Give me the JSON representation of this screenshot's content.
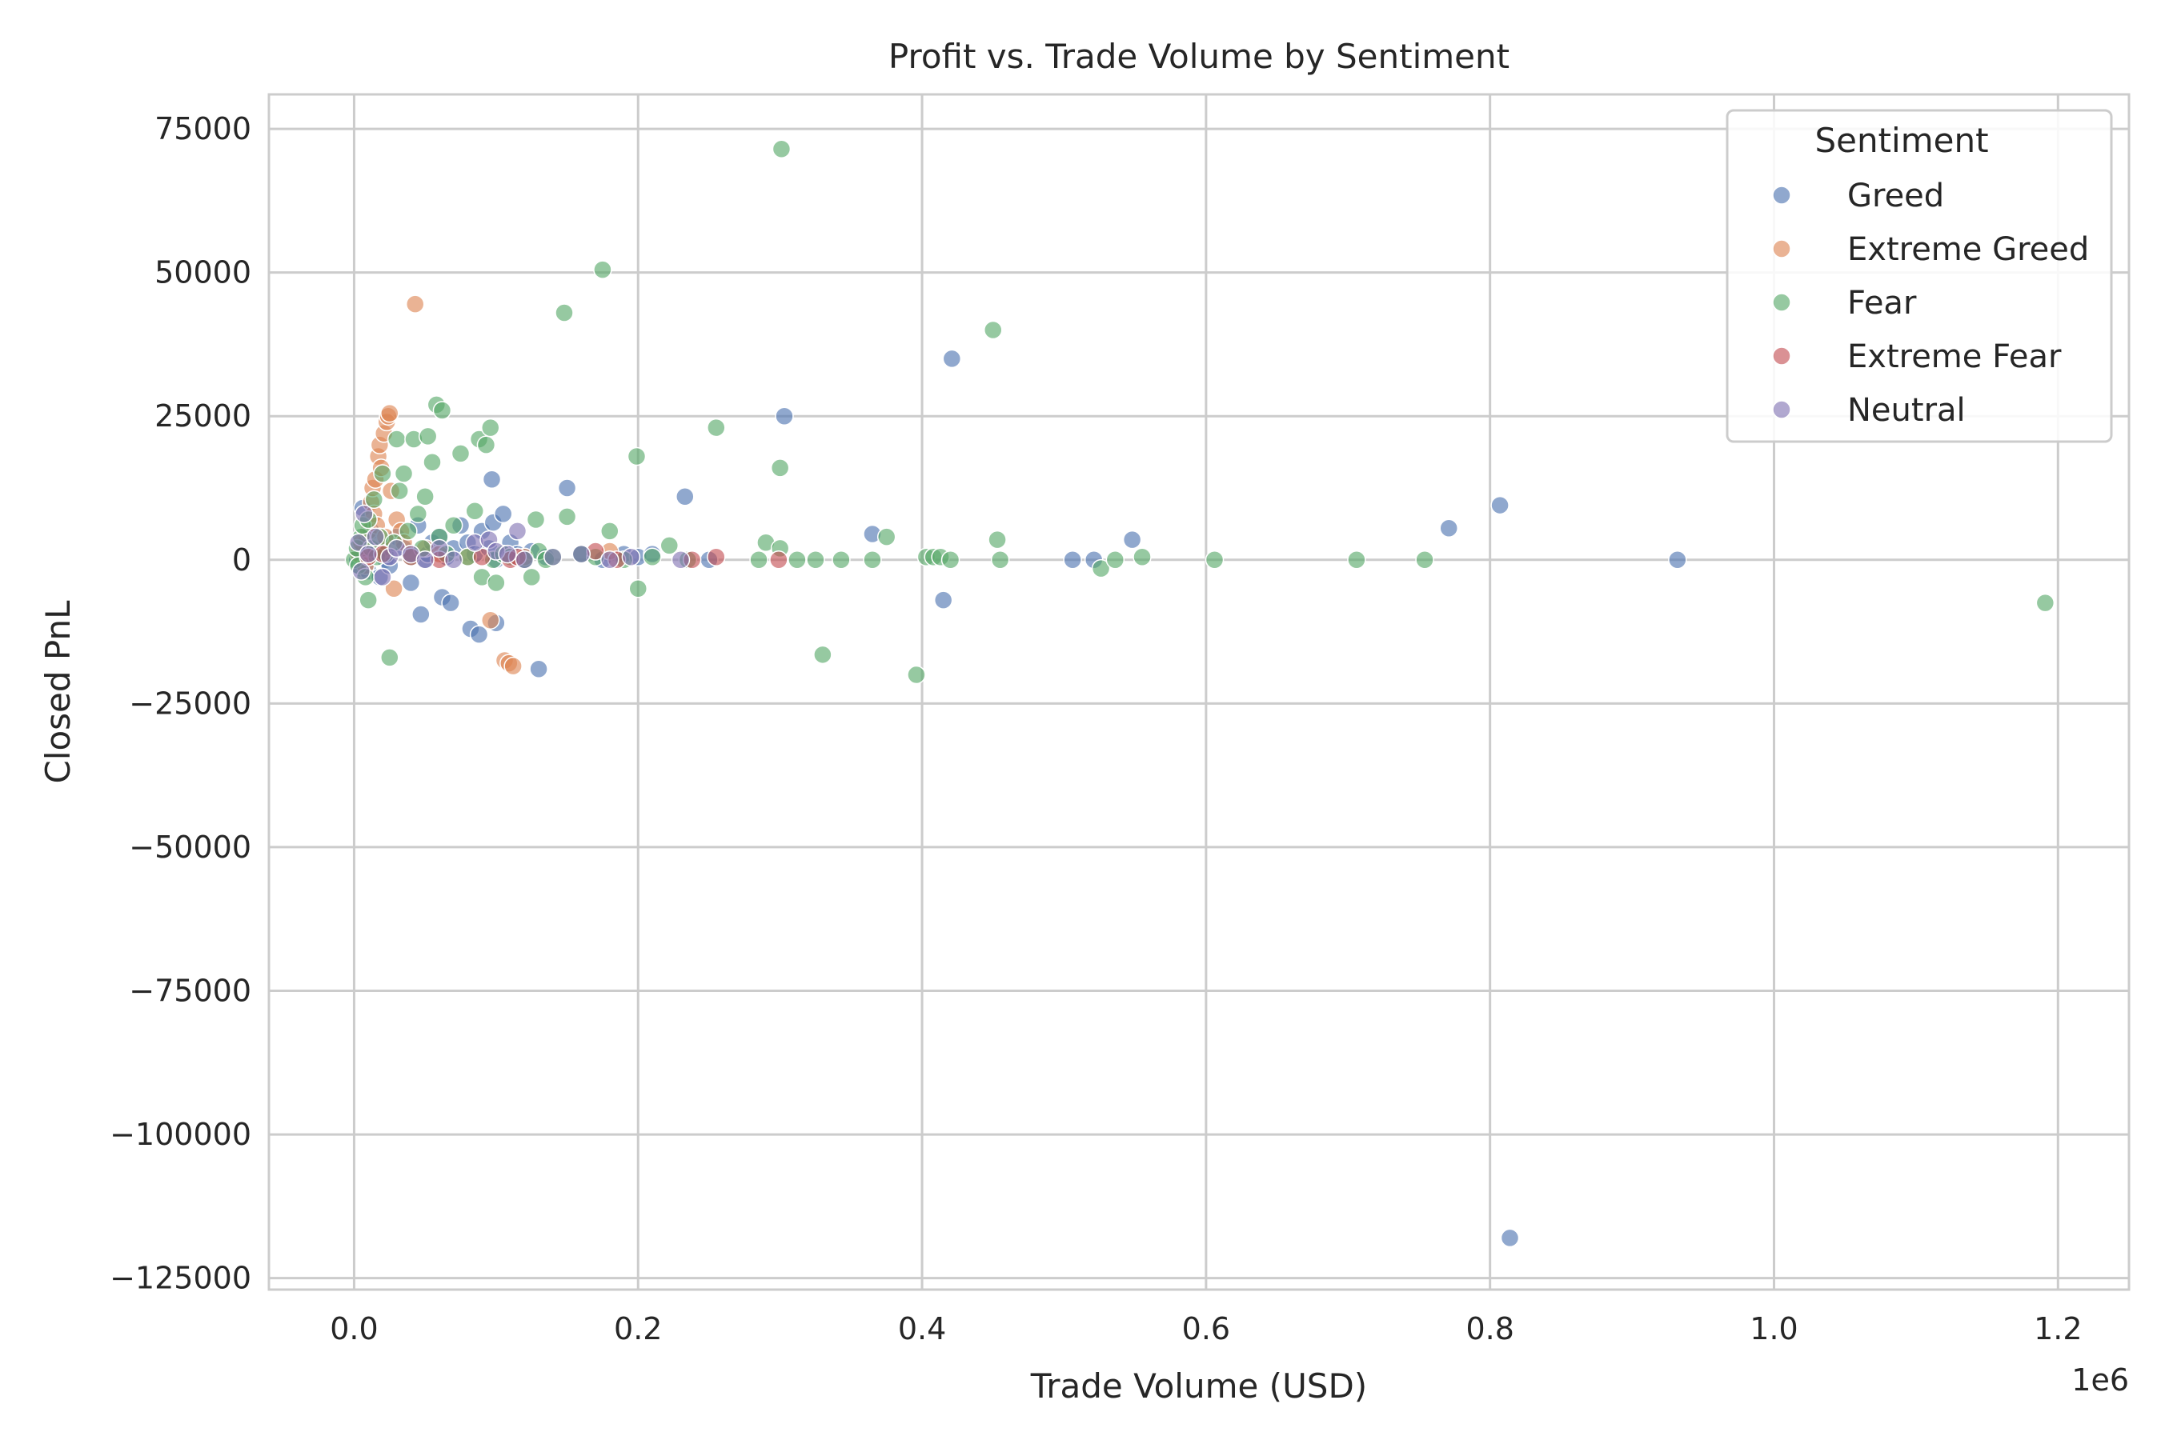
{
  "chart_data": {
    "type": "scatter",
    "title": "Profit vs. Trade Volume by Sentiment",
    "xlabel": "Trade Volume (USD)",
    "ylabel": "Closed PnL",
    "x_offset_label": "1e6",
    "xlim": [
      -60000,
      1250000
    ],
    "ylim": [
      -127000,
      81000
    ],
    "x_ticks": [
      0,
      200000,
      400000,
      600000,
      800000,
      1000000,
      1200000
    ],
    "x_tick_labels": [
      "0.0",
      "0.2",
      "0.4",
      "0.6",
      "0.8",
      "1.0",
      "1.2"
    ],
    "y_ticks": [
      -125000,
      -100000,
      -75000,
      -50000,
      -25000,
      0,
      25000,
      50000,
      75000
    ],
    "y_tick_labels": [
      "−125000",
      "−100000",
      "−75000",
      "−50000",
      "−25000",
      "0",
      "25000",
      "50000",
      "75000"
    ],
    "grid": true,
    "legend": {
      "title": "Sentiment",
      "placement": "top-right"
    },
    "series": [
      {
        "name": "Greed",
        "color": "#4c72b0",
        "points": [
          [
            2000,
            0
          ],
          [
            4000,
            1000
          ],
          [
            5000,
            -1500
          ],
          [
            6000,
            9000
          ],
          [
            8000,
            3000
          ],
          [
            10000,
            -2000
          ],
          [
            12000,
            5000
          ],
          [
            15000,
            1000
          ],
          [
            18000,
            -3000
          ],
          [
            20000,
            2000
          ],
          [
            22000,
            0
          ],
          [
            25000,
            -1000
          ],
          [
            30000,
            4000
          ],
          [
            35000,
            2000
          ],
          [
            40000,
            -4000
          ],
          [
            45000,
            6000
          ],
          [
            47000,
            -9500
          ],
          [
            50000,
            0
          ],
          [
            52000,
            1000
          ],
          [
            55000,
            3000
          ],
          [
            60000,
            4000
          ],
          [
            62000,
            -6500
          ],
          [
            65000,
            500
          ],
          [
            68000,
            -7500
          ],
          [
            70000,
            2000
          ],
          [
            75000,
            6000
          ],
          [
            80000,
            3000
          ],
          [
            82000,
            -12000
          ],
          [
            85000,
            1000
          ],
          [
            88000,
            -13000
          ],
          [
            90000,
            5000
          ],
          [
            95000,
            2000
          ],
          [
            97000,
            14000
          ],
          [
            98000,
            6500
          ],
          [
            100000,
            -11000
          ],
          [
            100000,
            0
          ],
          [
            105000,
            8000
          ],
          [
            110000,
            3000
          ],
          [
            115000,
            1000
          ],
          [
            120000,
            0
          ],
          [
            125000,
            1500
          ],
          [
            130000,
            -19000
          ],
          [
            135000,
            500
          ],
          [
            150000,
            12500
          ],
          [
            160000,
            1000
          ],
          [
            175000,
            0
          ],
          [
            190000,
            1000
          ],
          [
            200000,
            500
          ],
          [
            210000,
            1000
          ],
          [
            233000,
            11000
          ],
          [
            250000,
            0
          ],
          [
            303000,
            25000
          ],
          [
            365000,
            4500
          ],
          [
            415000,
            -7000
          ],
          [
            421000,
            35000
          ],
          [
            506000,
            0
          ],
          [
            521000,
            0
          ],
          [
            548000,
            3500
          ],
          [
            771000,
            5500
          ],
          [
            807000,
            9500
          ],
          [
            814000,
            -118000
          ],
          [
            932000,
            0
          ]
        ]
      },
      {
        "name": "Extreme Greed",
        "color": "#dd8452",
        "points": [
          [
            3000,
            1000
          ],
          [
            5000,
            3000
          ],
          [
            8000,
            -1000
          ],
          [
            10000,
            5000
          ],
          [
            12000,
            10000
          ],
          [
            13000,
            12500
          ],
          [
            14000,
            8000
          ],
          [
            15000,
            14000
          ],
          [
            16000,
            6000
          ],
          [
            17000,
            18000
          ],
          [
            18000,
            20000
          ],
          [
            19000,
            16000
          ],
          [
            20000,
            2000
          ],
          [
            21000,
            22000
          ],
          [
            22000,
            4000
          ],
          [
            23000,
            24000
          ],
          [
            24000,
            25000
          ],
          [
            25000,
            25500
          ],
          [
            26000,
            12000
          ],
          [
            28000,
            -5000
          ],
          [
            30000,
            7000
          ],
          [
            33000,
            5000
          ],
          [
            35000,
            3000
          ],
          [
            40000,
            1000
          ],
          [
            43000,
            44500
          ],
          [
            50000,
            2000
          ],
          [
            60000,
            1000
          ],
          [
            80000,
            500
          ],
          [
            96000,
            -10500
          ],
          [
            106000,
            -17500
          ],
          [
            109000,
            -18000
          ],
          [
            112000,
            -18500
          ],
          [
            120000,
            500
          ],
          [
            180000,
            1500
          ]
        ]
      },
      {
        "name": "Fear",
        "color": "#55a868",
        "points": [
          [
            0,
            0
          ],
          [
            2000,
            2000
          ],
          [
            3000,
            -1000
          ],
          [
            5000,
            4000
          ],
          [
            6000,
            6000
          ],
          [
            8000,
            -3000
          ],
          [
            10000,
            7000
          ],
          [
            10000,
            -7000
          ],
          [
            12000,
            2000
          ],
          [
            14000,
            10500
          ],
          [
            16000,
            500
          ],
          [
            18000,
            4000
          ],
          [
            20000,
            15000
          ],
          [
            22000,
            1000
          ],
          [
            25000,
            -17000
          ],
          [
            28000,
            3000
          ],
          [
            30000,
            21000
          ],
          [
            32000,
            12000
          ],
          [
            35000,
            15000
          ],
          [
            38000,
            5000
          ],
          [
            40000,
            500
          ],
          [
            42000,
            21000
          ],
          [
            45000,
            8000
          ],
          [
            48000,
            2000
          ],
          [
            50000,
            11000
          ],
          [
            52000,
            21500
          ],
          [
            55000,
            17000
          ],
          [
            58000,
            27000
          ],
          [
            60000,
            4000
          ],
          [
            62000,
            26000
          ],
          [
            65000,
            1000
          ],
          [
            70000,
            6000
          ],
          [
            75000,
            18500
          ],
          [
            80000,
            500
          ],
          [
            85000,
            8500
          ],
          [
            88000,
            21000
          ],
          [
            90000,
            -3000
          ],
          [
            93000,
            20000
          ],
          [
            96000,
            23000
          ],
          [
            98000,
            0
          ],
          [
            100000,
            -4000
          ],
          [
            105000,
            1000
          ],
          [
            110000,
            500
          ],
          [
            120000,
            0
          ],
          [
            125000,
            -3000
          ],
          [
            128000,
            7000
          ],
          [
            130000,
            1500
          ],
          [
            135000,
            0
          ],
          [
            140000,
            500
          ],
          [
            148000,
            43000
          ],
          [
            150000,
            7500
          ],
          [
            160000,
            1000
          ],
          [
            170000,
            500
          ],
          [
            175000,
            50500
          ],
          [
            180000,
            5000
          ],
          [
            190000,
            0
          ],
          [
            199000,
            18000
          ],
          [
            200000,
            -5000
          ],
          [
            210000,
            500
          ],
          [
            222000,
            2500
          ],
          [
            235000,
            0
          ],
          [
            255000,
            23000
          ],
          [
            285000,
            0
          ],
          [
            290000,
            3000
          ],
          [
            300000,
            16000
          ],
          [
            300000,
            2000
          ],
          [
            301000,
            71500
          ],
          [
            312000,
            0
          ],
          [
            325000,
            0
          ],
          [
            330000,
            -16500
          ],
          [
            343000,
            0
          ],
          [
            365000,
            0
          ],
          [
            375000,
            4000
          ],
          [
            396000,
            -20000
          ],
          [
            403000,
            500
          ],
          [
            408000,
            500
          ],
          [
            413000,
            500
          ],
          [
            420000,
            0
          ],
          [
            450000,
            40000
          ],
          [
            453000,
            3500
          ],
          [
            455000,
            0
          ],
          [
            526000,
            -1500
          ],
          [
            536000,
            0
          ],
          [
            555000,
            500
          ],
          [
            606000,
            0
          ],
          [
            706000,
            0
          ],
          [
            754000,
            0
          ],
          [
            1191000,
            -7500
          ]
        ]
      },
      {
        "name": "Extreme Fear",
        "color": "#c44e52",
        "points": [
          [
            10000,
            500
          ],
          [
            20000,
            1000
          ],
          [
            40000,
            500
          ],
          [
            60000,
            0
          ],
          [
            90000,
            500
          ],
          [
            110000,
            0
          ],
          [
            115000,
            500
          ],
          [
            170000,
            1500
          ],
          [
            185000,
            0
          ],
          [
            238000,
            0
          ],
          [
            255000,
            500
          ],
          [
            299000,
            0
          ]
        ]
      },
      {
        "name": "Neutral",
        "color": "#8172b3",
        "points": [
          [
            3000,
            3000
          ],
          [
            5000,
            -2000
          ],
          [
            7000,
            8000
          ],
          [
            10000,
            1000
          ],
          [
            15000,
            4000
          ],
          [
            20000,
            -3000
          ],
          [
            25000,
            500
          ],
          [
            30000,
            2000
          ],
          [
            40000,
            1000
          ],
          [
            50000,
            0
          ],
          [
            60000,
            2000
          ],
          [
            70000,
            0
          ],
          [
            85000,
            3000
          ],
          [
            95000,
            3500
          ],
          [
            100000,
            1500
          ],
          [
            108000,
            1000
          ],
          [
            115000,
            5000
          ],
          [
            120000,
            0
          ],
          [
            140000,
            500
          ],
          [
            160000,
            1000
          ],
          [
            180000,
            0
          ],
          [
            195000,
            500
          ],
          [
            230000,
            0
          ]
        ]
      }
    ]
  }
}
